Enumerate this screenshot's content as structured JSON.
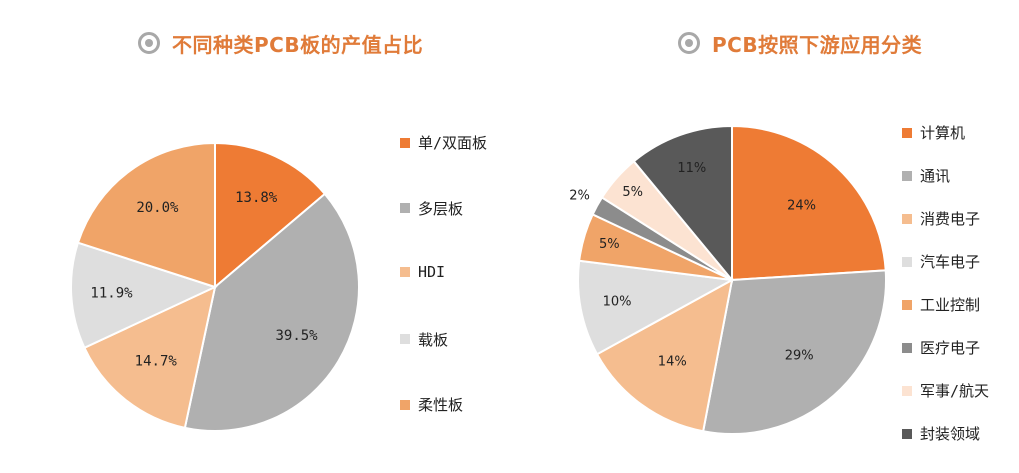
{
  "left_title": "不同种类PCB板的产值占比",
  "right_title": "PCB按照下游应用分类",
  "chart_data": [
    {
      "type": "pie",
      "title": "不同种类PCB板的产值占比",
      "labels": [
        "单/双面板",
        "多层板",
        "HDI",
        "载板",
        "柔性板"
      ],
      "values": [
        13.8,
        39.5,
        14.7,
        11.9,
        20.0
      ],
      "display_labels": [
        "13.8%",
        "39.5%",
        "14.7%",
        "11.9%",
        "20.0%"
      ],
      "colors": [
        "#ee7b34",
        "#b0b0b0",
        "#f5bd8f",
        "#dedede",
        "#f0a468"
      ],
      "legend_colors": [
        "#ee7b34",
        "#b0b0b0",
        "#f5bd8f",
        "#dedede",
        "#f0a468"
      ],
      "legend_position": "right"
    },
    {
      "type": "pie",
      "title": "PCB按照下游应用分类",
      "labels": [
        "计算机",
        "通讯",
        "消费电子",
        "汽车电子",
        "工业控制",
        "医疗电子",
        "军事/航天",
        "封装领域"
      ],
      "values": [
        24,
        29,
        14,
        10,
        5,
        2,
        5,
        11
      ],
      "display_labels": [
        "24%",
        "29%",
        "14%",
        "10%",
        "5%",
        "2%",
        "5%",
        "11%"
      ],
      "colors": [
        "#ee7b34",
        "#b0b0b0",
        "#f5bd8f",
        "#dedede",
        "#f0a468",
        "#8c8c8c",
        "#fce3d2",
        "#595959"
      ],
      "legend_colors": [
        "#ee7b34",
        "#b0b0b0",
        "#f5bd8f",
        "#dedede",
        "#f0a468",
        "#8c8c8c",
        "#fce3d2",
        "#595959"
      ],
      "legend_position": "right"
    }
  ]
}
